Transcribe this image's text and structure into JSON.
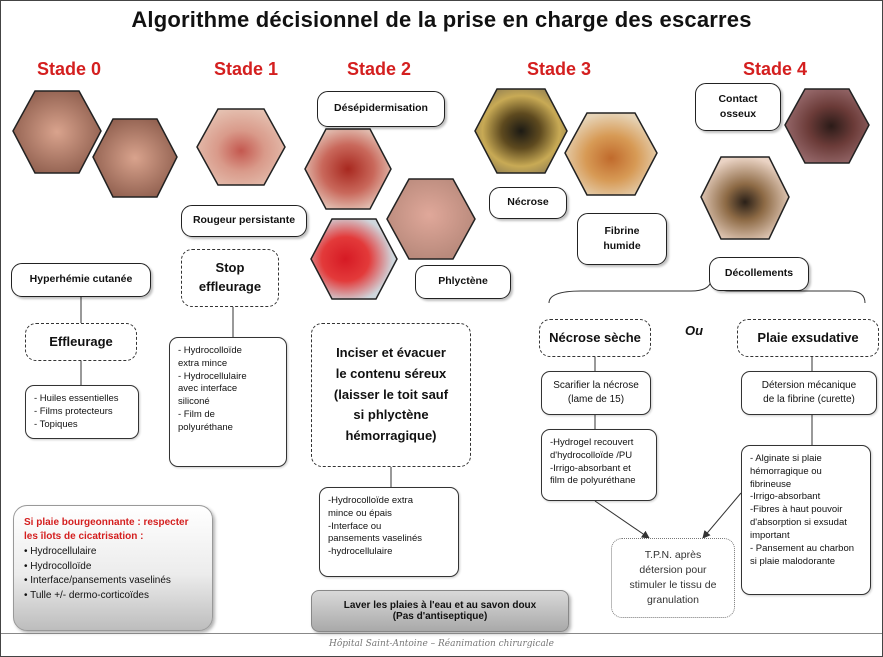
{
  "title": "Algorithme décisionnel de la prise en charge des escarres",
  "stages": {
    "s0": "Stade 0",
    "s1": "Stade 1",
    "s2": "Stade 2",
    "s3": "Stade 3",
    "s4": "Stade 4"
  },
  "stage0": {
    "sign": "Hyperhémie cutanée",
    "action": "Effleurage",
    "list": [
      "- Huiles essentielles",
      "- Films protecteurs",
      "- Topiques"
    ]
  },
  "stage1": {
    "sign": "Rougeur persistante",
    "action_line1": "Stop",
    "action_line2": "effleurage",
    "list": [
      "- Hydrocolloïde",
      "extra mince",
      "- Hydrocellulaire",
      "avec interface",
      "siliconé",
      "- Film de",
      "polyuréthane"
    ]
  },
  "stage2": {
    "sign_top": "Désépidermisation",
    "sign_bottom": "Phlyctène",
    "action": [
      "Inciser et évacuer",
      "le contenu séreux",
      "(laisser le toit sauf",
      "si phlyctène",
      "hémorragique)"
    ],
    "list": [
      "-Hydrocolloïde extra",
      "mince ou épais",
      "-Interface ou",
      "pansements vaselinés",
      "-hydrocellulaire"
    ]
  },
  "stage3": {
    "sign_necrose": "Nécrose",
    "sign_fibrine_line1": "Fibrine",
    "sign_fibrine_line2": "humide",
    "branch": "Nécrose sèche",
    "step_line1": "Scarifier la nécrose",
    "step_line2": "(lame de 15)",
    "list": [
      "-Hydrogel recouvert",
      "d'hydrocolloïde /PU",
      "-Irrigo-absorbant et",
      "film de polyuréthane"
    ]
  },
  "stage4": {
    "sign_contact_line1": "Contact",
    "sign_contact_line2": "osseux",
    "sign_decol": "Décollements",
    "branch": "Plaie exsudative",
    "step_line1": "Détersion mécanique",
    "step_line2": "de la fibrine (curette)",
    "list": [
      "- Alginate si plaie",
      "hémorragique ou",
      "fibrineuse",
      "-Irrigo-absorbant",
      "-Fibres à haut pouvoir",
      "d'absorption si exsudat",
      "important",
      "- Pansement au charbon",
      "si plaie malodorante"
    ]
  },
  "ou": "Ou",
  "tpn": [
    "T.P.N. après",
    "détersion pour",
    "stimuler le tissu de",
    "granulation"
  ],
  "bourgeonnante": {
    "heading": [
      "Si plaie bourgeonnante : respecter",
      "les îlots de cicatrisation :"
    ],
    "items": [
      "Hydrocellulaire",
      "Hydrocolloïde",
      "Interface/pansements vaselinés",
      "Tulle +/- dermo-corticoïdes"
    ]
  },
  "laver": {
    "line1": "Laver les plaies à l'eau et au savon doux",
    "line2": "(Pas d'antiseptique)"
  },
  "footer": "Hôpital Saint-Antoine – Réanimation chirurgicale",
  "colors": {
    "stage_red": "#d41f1f"
  }
}
